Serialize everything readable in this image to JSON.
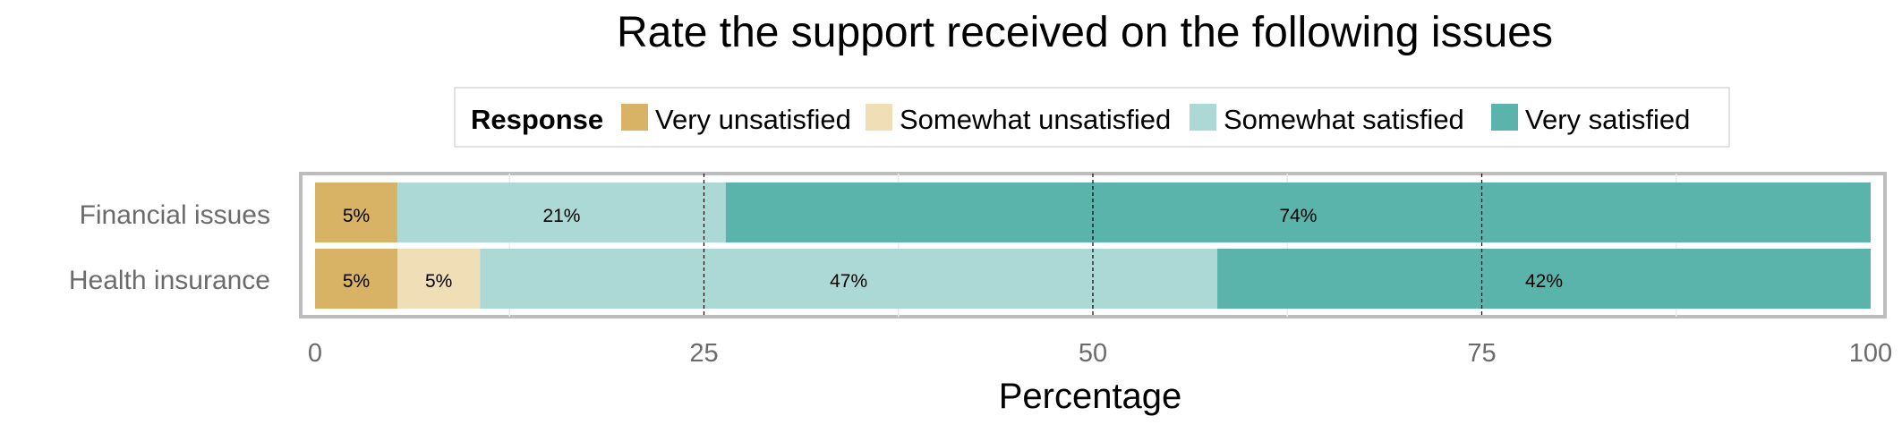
{
  "chart_data": {
    "type": "bar",
    "orientation": "horizontal",
    "stacked": true,
    "title": "Rate the support received on the following issues",
    "xlabel": "Percentage",
    "ylabel": "",
    "xlim": [
      0,
      100
    ],
    "xticks": [
      "0",
      "25",
      "50",
      "75",
      "100"
    ],
    "grid": true,
    "legend": {
      "title": "Response",
      "placement": "top"
    },
    "categories": [
      "Financial issues",
      "Health insurance"
    ],
    "series": [
      {
        "name": "Very unsatisfied",
        "color": "#d8b365",
        "values": [
          5.3,
          5.3
        ],
        "labels": [
          "5%",
          "5%"
        ]
      },
      {
        "name": "Somewhat unsatisfied",
        "color": "#f0deb6",
        "values": [
          0,
          5.3
        ],
        "labels": [
          "",
          "5%"
        ]
      },
      {
        "name": "Somewhat satisfied",
        "color": "#acd9d5",
        "values": [
          21.1,
          47.4
        ],
        "labels": [
          "21%",
          "47%"
        ]
      },
      {
        "name": "Very satisfied",
        "color": "#5ab4ac",
        "values": [
          73.6,
          42.0
        ],
        "labels": [
          "74%",
          "42%"
        ]
      }
    ]
  }
}
